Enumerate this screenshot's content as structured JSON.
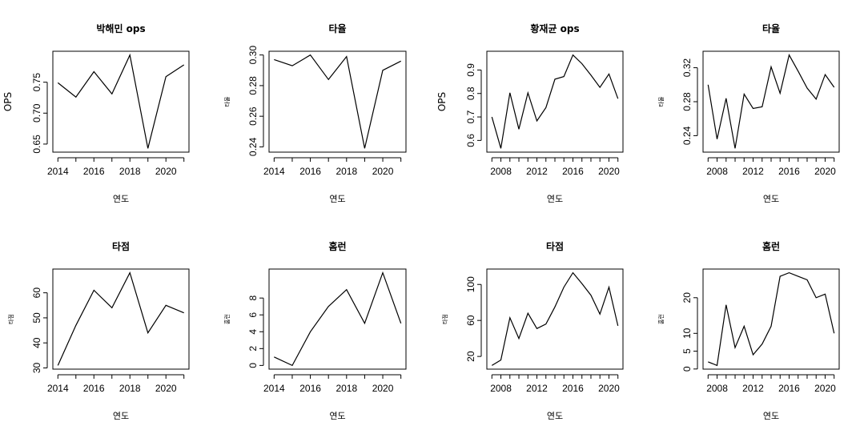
{
  "chart_data": [
    {
      "type": "line",
      "title": "박해민 ops",
      "xlabel": "연도",
      "ylabel": "OPS",
      "x": [
        2014,
        2015,
        2016,
        2017,
        2018,
        2019,
        2020,
        2021
      ],
      "values": [
        0.749,
        0.726,
        0.767,
        0.731,
        0.794,
        0.643,
        0.759,
        0.778
      ],
      "xlim": [
        2014,
        2021
      ],
      "ylim": [
        0.643,
        0.794
      ],
      "xticks": [
        2014,
        2016,
        2018,
        2020
      ],
      "yticks": [
        0.65,
        0.7,
        0.75
      ],
      "ytick_labels": [
        "0.65",
        "0.70",
        "0.75"
      ],
      "grid": false
    },
    {
      "type": "line",
      "title": "타율",
      "xlabel": "연도",
      "ylabel": "타율",
      "x": [
        2014,
        2015,
        2016,
        2017,
        2018,
        2019,
        2020,
        2021
      ],
      "values": [
        0.297,
        0.293,
        0.3,
        0.284,
        0.299,
        0.239,
        0.29,
        0.296
      ],
      "xlim": [
        2014,
        2021
      ],
      "ylim": [
        0.239,
        0.3
      ],
      "xticks": [
        2014,
        2016,
        2018,
        2020
      ],
      "yticks": [
        0.24,
        0.26,
        0.28,
        0.3
      ],
      "ytick_labels": [
        "0.24",
        "0.26",
        "0.28",
        "0.30"
      ],
      "grid": false
    },
    {
      "type": "line",
      "title": "황재균 ops",
      "xlabel": "연도",
      "ylabel": "OPS",
      "x": [
        2007,
        2008,
        2009,
        2010,
        2011,
        2012,
        2013,
        2014,
        2015,
        2016,
        2017,
        2018,
        2019,
        2020,
        2021
      ],
      "values": [
        0.7,
        0.566,
        0.803,
        0.648,
        0.803,
        0.683,
        0.74,
        0.861,
        0.872,
        0.964,
        0.927,
        0.878,
        0.826,
        0.883,
        0.778
      ],
      "xlim": [
        2007,
        2021
      ],
      "ylim": [
        0.566,
        0.964
      ],
      "xticks": [
        2008,
        2012,
        2016,
        2020
      ],
      "yticks": [
        0.6,
        0.7,
        0.8,
        0.9
      ],
      "ytick_labels": [
        "0.6",
        "0.7",
        "0.8",
        "0.9"
      ],
      "grid": false
    },
    {
      "type": "line",
      "title": "타율",
      "xlabel": "연도",
      "ylabel": "타율",
      "x": [
        2007,
        2008,
        2009,
        2010,
        2011,
        2012,
        2013,
        2014,
        2015,
        2016,
        2017,
        2018,
        2019,
        2020,
        2021
      ],
      "values": [
        0.3,
        0.236,
        0.284,
        0.225,
        0.289,
        0.272,
        0.274,
        0.321,
        0.29,
        0.335,
        0.316,
        0.296,
        0.283,
        0.312,
        0.297
      ],
      "xlim": [
        2007,
        2021
      ],
      "ylim": [
        0.225,
        0.335
      ],
      "xticks": [
        2008,
        2012,
        2016,
        2020
      ],
      "yticks": [
        0.24,
        0.28,
        0.32
      ],
      "ytick_labels": [
        "0.24",
        "0.28",
        "0.32"
      ],
      "grid": false
    },
    {
      "type": "line",
      "title": "타점",
      "xlabel": "연도",
      "ylabel": "타점",
      "x": [
        2014,
        2015,
        2016,
        2017,
        2018,
        2019,
        2020,
        2021
      ],
      "values": [
        31,
        47,
        61,
        54,
        68,
        44,
        55,
        52
      ],
      "xlim": [
        2014,
        2021
      ],
      "ylim": [
        31,
        68
      ],
      "xticks": [
        2014,
        2016,
        2018,
        2020
      ],
      "yticks": [
        30,
        40,
        50,
        60
      ],
      "ytick_labels": [
        "30",
        "40",
        "50",
        "60"
      ],
      "grid": false
    },
    {
      "type": "line",
      "title": "홈런",
      "xlabel": "연도",
      "ylabel": "홈런",
      "x": [
        2014,
        2015,
        2016,
        2017,
        2018,
        2019,
        2020,
        2021
      ],
      "values": [
        1,
        0,
        4,
        7,
        9,
        5,
        11,
        5
      ],
      "xlim": [
        2014,
        2021
      ],
      "ylim": [
        0,
        11
      ],
      "xticks": [
        2014,
        2016,
        2018,
        2020
      ],
      "yticks": [
        0,
        2,
        4,
        6,
        8
      ],
      "ytick_labels": [
        "0",
        "2",
        "4",
        "6",
        "8"
      ],
      "grid": false
    },
    {
      "type": "line",
      "title": "타점",
      "xlabel": "연도",
      "ylabel": "타점",
      "x": [
        2007,
        2008,
        2009,
        2010,
        2011,
        2012,
        2013,
        2014,
        2015,
        2016,
        2017,
        2018,
        2019,
        2020,
        2021
      ],
      "values": [
        10,
        16,
        63,
        40,
        68,
        51,
        56,
        75,
        97,
        113,
        101,
        88,
        67,
        97,
        54
      ],
      "xlim": [
        2007,
        2021
      ],
      "ylim": [
        10,
        113
      ],
      "xticks": [
        2008,
        2012,
        2016,
        2020
      ],
      "yticks": [
        20,
        60,
        100
      ],
      "ytick_labels": [
        "20",
        "60",
        "100"
      ],
      "grid": false
    },
    {
      "type": "line",
      "title": "홈런",
      "xlabel": "연도",
      "ylabel": "홈런",
      "x": [
        2007,
        2008,
        2009,
        2010,
        2011,
        2012,
        2013,
        2014,
        2015,
        2016,
        2017,
        2018,
        2019,
        2020,
        2021
      ],
      "values": [
        2,
        1,
        18,
        6,
        12,
        4,
        7,
        12,
        26,
        27,
        26,
        25,
        20,
        21,
        10
      ],
      "xlim": [
        2007,
        2021
      ],
      "ylim": [
        1,
        27
      ],
      "xticks": [
        2008,
        2012,
        2016,
        2020
      ],
      "yticks": [
        0,
        5,
        10,
        20
      ],
      "ytick_labels": [
        "0",
        "5",
        "10",
        "20"
      ],
      "grid": false
    }
  ]
}
